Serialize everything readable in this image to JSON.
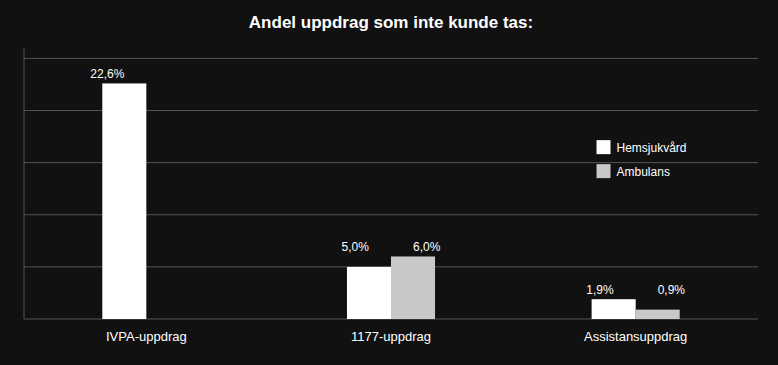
{
  "chart_data": {
    "type": "bar",
    "title": "Andel uppdrag som inte kunde tas:",
    "categories": [
      "IVPA-uppdrag",
      "1177-uppdrag",
      "Assistansuppdrag"
    ],
    "series": [
      {
        "name": "Hemsjukvård",
        "color": "#ffffff",
        "values": [
          22.6,
          5.0,
          1.9
        ],
        "value_labels": [
          "22,6%",
          "5,0%",
          "1,9%"
        ]
      },
      {
        "name": "Ambulans",
        "color": "#c8c8c8",
        "values": [
          0.0,
          6.0,
          0.9
        ],
        "value_labels": [
          null,
          "6,0%",
          "0,9%"
        ]
      }
    ],
    "ylim": [
      0,
      26
    ],
    "yticks": [
      0,
      5,
      10,
      15,
      20,
      25
    ],
    "grid": true,
    "tick_labels": "x",
    "data_labels": true,
    "legend": "right"
  }
}
